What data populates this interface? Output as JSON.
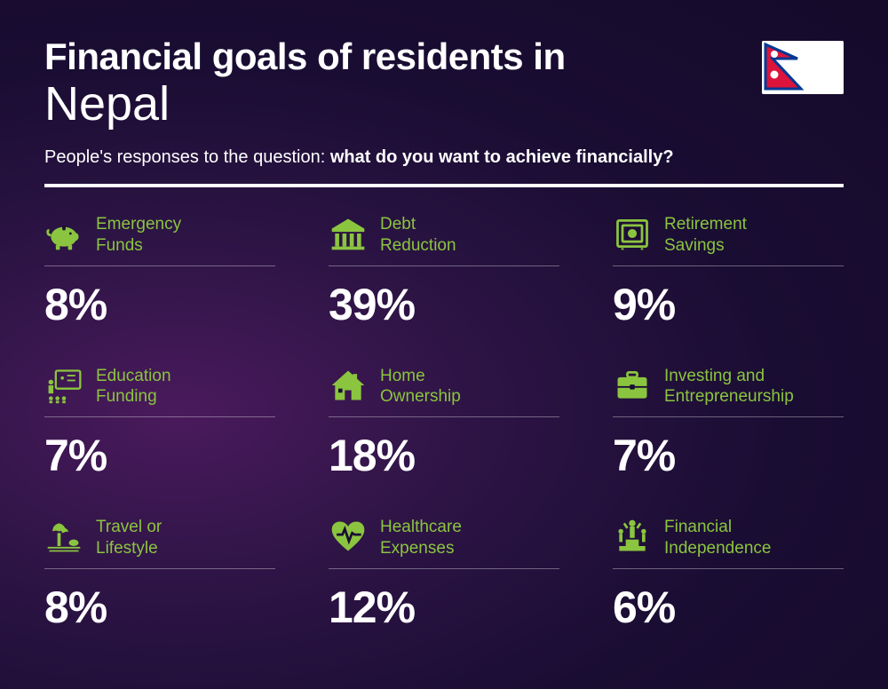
{
  "header": {
    "title_line1": "Financial goals of residents in",
    "title_line2": "Nepal",
    "subtitle_prefix": "People's responses to the question: ",
    "subtitle_bold": "what do you want to achieve financially?"
  },
  "styling": {
    "accent_color": "#8bc53f",
    "text_color": "#ffffff",
    "background_gradient": [
      "#4a1a5c",
      "#2d1445",
      "#1a0d33",
      "#150a2a"
    ],
    "title1_fontsize": 42,
    "title1_weight": 900,
    "title2_fontsize": 54,
    "title2_weight": 300,
    "subtitle_fontsize": 20,
    "label_fontsize": 19,
    "value_fontsize": 50,
    "value_weight": 900,
    "divider_height": 4,
    "grid_columns": 3,
    "grid_row_gap": 40,
    "grid_col_gap": 60
  },
  "flag": {
    "country": "Nepal",
    "bg_color": "#ffffff",
    "crimson": "#dc143c",
    "blue": "#003893"
  },
  "items": [
    {
      "icon": "piggy-bank",
      "label": "Emergency\nFunds",
      "value": "8%"
    },
    {
      "icon": "bank",
      "label": "Debt\nReduction",
      "value": "39%"
    },
    {
      "icon": "safe",
      "label": "Retirement\nSavings",
      "value": "9%"
    },
    {
      "icon": "education",
      "label": "Education\nFunding",
      "value": "7%"
    },
    {
      "icon": "house",
      "label": "Home\nOwnership",
      "value": "18%"
    },
    {
      "icon": "briefcase",
      "label": "Investing and\nEntrepreneurship",
      "value": "7%"
    },
    {
      "icon": "travel",
      "label": "Travel or\nLifestyle",
      "value": "8%"
    },
    {
      "icon": "healthcare",
      "label": "Healthcare\nExpenses",
      "value": "12%"
    },
    {
      "icon": "independence",
      "label": "Financial\nIndependence",
      "value": "6%"
    }
  ]
}
